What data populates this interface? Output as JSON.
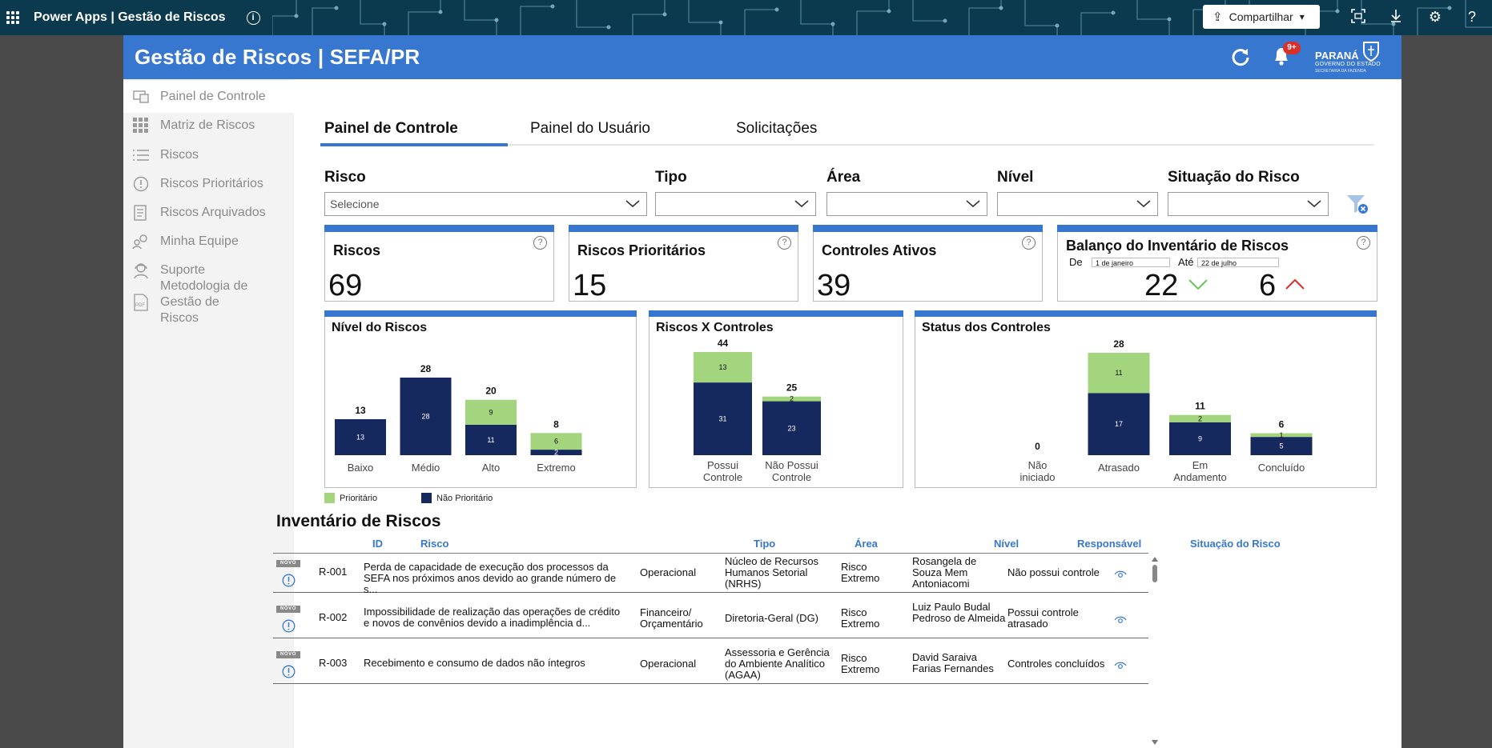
{
  "topbar": {
    "app_title": "Power Apps  |  Gestão de Riscos",
    "share_label": "Compartilhar"
  },
  "header": {
    "title": "Gestão de Riscos | SEFA/PR",
    "notification_count": "9+",
    "logo_text": "PARANÁ",
    "logo_subtext": "GOVERNO DO ESTADO",
    "logo_subtext2": "SECRETARIA DA FAZENDA"
  },
  "sidebar": {
    "items": [
      {
        "label": "Painel de Controle",
        "icon": "dashboard-icon"
      },
      {
        "label": "Matriz de Riscos",
        "icon": "grid-icon"
      },
      {
        "label": "Riscos",
        "icon": "list-icon"
      },
      {
        "label": "Riscos Prioritários",
        "icon": "exclamation-circle-icon"
      },
      {
        "label": "Riscos Arquivados",
        "icon": "archive-icon"
      },
      {
        "label": "Minha Equipe",
        "icon": "team-icon"
      },
      {
        "label": "Suporte",
        "icon": "headset-icon"
      },
      {
        "label": "Metodologia de Gestão de Riscos",
        "icon": "pdf-icon"
      }
    ]
  },
  "tabs": [
    {
      "label": "Painel de Controle",
      "active": true
    },
    {
      "label": "Painel do Usuário",
      "active": false
    },
    {
      "label": "Solicitações",
      "active": false
    }
  ],
  "filters": [
    {
      "label": "Risco",
      "value": "Selecione"
    },
    {
      "label": "Tipo",
      "value": ""
    },
    {
      "label": "Área",
      "value": ""
    },
    {
      "label": "Nível",
      "value": ""
    },
    {
      "label": "Situação do Risco",
      "value": ""
    }
  ],
  "kpis": {
    "riscos": {
      "title": "Riscos",
      "value": "69"
    },
    "prioritarios": {
      "title": "Riscos Prioritários",
      "value": "15"
    },
    "controles": {
      "title": "Controles Ativos",
      "value": "39"
    },
    "inventario": {
      "title": "Balanço do Inventário de Riscos",
      "de_label": "De",
      "de_value": "1 de janeiro",
      "ate_label": "Até",
      "ate_value": "22 de julho",
      "down_value": "22",
      "up_value": "6"
    }
  },
  "colors": {
    "primary": "#3777cf",
    "prioritario": "#a3d47e",
    "nao_prioritario": "#16295e",
    "up_arrow": "#d9302a",
    "down_arrow": "#6fc45a"
  },
  "chart_data": [
    {
      "type": "bar",
      "title": "Nível do Riscos",
      "categories": [
        "Baixo",
        "Médio",
        "Alto",
        "Extremo"
      ],
      "series": [
        {
          "name": "Não Prioritário",
          "values": [
            13,
            28,
            11,
            2
          ]
        },
        {
          "name": "Prioritário",
          "values": [
            0,
            0,
            9,
            6
          ]
        }
      ],
      "totals": [
        13,
        28,
        20,
        8
      ]
    },
    {
      "type": "bar",
      "title": "Riscos X Controles",
      "categories": [
        "Possui Controle",
        "Não Possui Controle"
      ],
      "series": [
        {
          "name": "Não Prioritário",
          "values": [
            31,
            23
          ]
        },
        {
          "name": "Prioritário",
          "values": [
            13,
            2
          ]
        }
      ],
      "totals": [
        44,
        25
      ]
    },
    {
      "type": "bar",
      "title": "Status dos Controles",
      "categories": [
        "Não iniciado",
        "Atrasado",
        "Em Andamento",
        "Concluído"
      ],
      "series": [
        {
          "name": "Não Prioritário",
          "values": [
            0,
            17,
            9,
            5
          ]
        },
        {
          "name": "Prioritário",
          "values": [
            0,
            11,
            2,
            1
          ]
        }
      ],
      "totals": [
        0,
        28,
        11,
        6
      ]
    }
  ],
  "legend": {
    "prioritario": "Prioritário",
    "nao_prioritario": "Não Prioritário"
  },
  "inventory": {
    "title": "Inventário de Riscos",
    "columns": [
      "ID",
      "Risco",
      "Tipo",
      "Área",
      "Nível",
      "Responsável",
      "Situação do Risco"
    ],
    "badge": "NOVO",
    "rows": [
      {
        "id": "R-001",
        "risco": "Perda de capacidade de execução dos processos da SEFA nos próximos anos devido ao grande número de s...",
        "tipo": "Operacional",
        "area": "Núcleo de Recursos Humanos Setorial (NRHS)",
        "nivel": "Risco Extremo",
        "responsavel": "Rosangela de Souza Mem Antoniacomi",
        "situacao": "Não possui controle"
      },
      {
        "id": "R-002",
        "risco": "Impossibilidade de realização das operações de crédito e novos de convênios devido a inadimplência d...",
        "tipo": "Financeiro/ Orçamentário",
        "area": "Diretoria-Geral (DG)",
        "nivel": "Risco Extremo",
        "responsavel": "Luiz Paulo Budal Pedroso de Almeida",
        "situacao": "Possui controle atrasado"
      },
      {
        "id": "R-003",
        "risco": "Recebimento e consumo de dados não íntegros",
        "tipo": "Operacional",
        "area": "Assessoria e Gerência do Ambiente Analítico (AGAA)",
        "nivel": "Risco Extremo",
        "responsavel": "David Saraiva Farias Fernandes",
        "situacao": "Controles concluídos"
      }
    ]
  }
}
